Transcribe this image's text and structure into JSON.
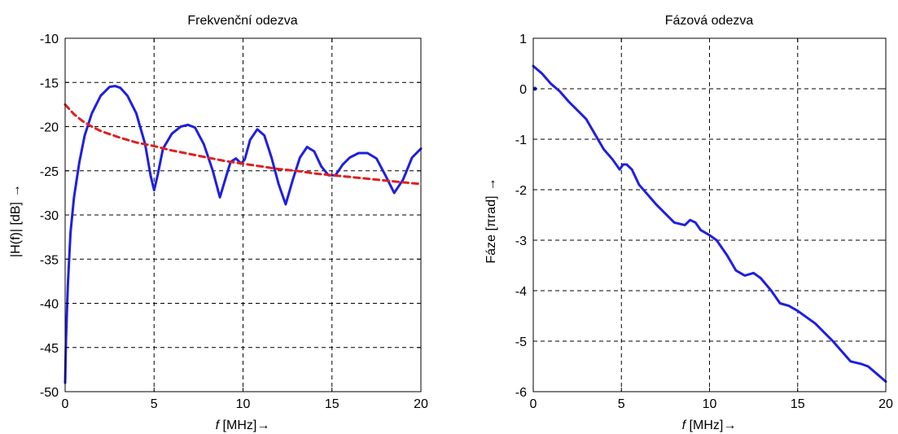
{
  "chart_data": [
    {
      "type": "line",
      "title": "Frekvenční odezva",
      "xlabel_italic": "f",
      "xlabel_rest": " [MHz]",
      "xlabel_arrow": "→",
      "ylabel": "|H(f)| [dB]",
      "ylabel_arrow": "→",
      "xlim": [
        0,
        20
      ],
      "ylim": [
        -50,
        -10
      ],
      "xticks": [
        "0",
        "5",
        "10",
        "15",
        "20"
      ],
      "yticks": [
        "-50",
        "-45",
        "-40",
        "-35",
        "-30",
        "-25",
        "-20",
        "-15",
        "-10"
      ],
      "grid": true,
      "series": [
        {
          "color": "#1f1fe0",
          "style": "solid",
          "points": [
            [
              0,
              -49
            ],
            [
              0.05,
              -44
            ],
            [
              0.15,
              -38
            ],
            [
              0.3,
              -32
            ],
            [
              0.5,
              -28
            ],
            [
              0.8,
              -24
            ],
            [
              1.1,
              -21
            ],
            [
              1.5,
              -18.5
            ],
            [
              2,
              -16.5
            ],
            [
              2.5,
              -15.5
            ],
            [
              2.8,
              -15.4
            ],
            [
              3.1,
              -15.6
            ],
            [
              3.5,
              -16.5
            ],
            [
              4,
              -18.5
            ],
            [
              4.5,
              -22
            ],
            [
              4.8,
              -25.5
            ],
            [
              5,
              -27.2
            ],
            [
              5.2,
              -25.5
            ],
            [
              5.5,
              -22.5
            ],
            [
              6,
              -20.8
            ],
            [
              6.5,
              -20
            ],
            [
              6.9,
              -19.8
            ],
            [
              7.3,
              -20.1
            ],
            [
              7.8,
              -22
            ],
            [
              8.3,
              -25
            ],
            [
              8.7,
              -28
            ],
            [
              9,
              -26
            ],
            [
              9.3,
              -24
            ],
            [
              9.6,
              -23.6
            ],
            [
              9.9,
              -24.2
            ],
            [
              10.1,
              -23.7
            ],
            [
              10.4,
              -21.5
            ],
            [
              10.8,
              -20.3
            ],
            [
              11.2,
              -21
            ],
            [
              11.6,
              -23.5
            ],
            [
              12,
              -26.5
            ],
            [
              12.4,
              -28.8
            ],
            [
              12.8,
              -26
            ],
            [
              13.2,
              -23.5
            ],
            [
              13.6,
              -22.3
            ],
            [
              14,
              -22.8
            ],
            [
              14.4,
              -24.5
            ],
            [
              14.8,
              -25.5
            ],
            [
              15.2,
              -25.5
            ],
            [
              15.6,
              -24.3
            ],
            [
              16,
              -23.5
            ],
            [
              16.5,
              -23
            ],
            [
              17,
              -23
            ],
            [
              17.5,
              -23.6
            ],
            [
              18,
              -25.5
            ],
            [
              18.5,
              -27.5
            ],
            [
              19,
              -26
            ],
            [
              19.5,
              -23.5
            ],
            [
              20,
              -22.5
            ]
          ]
        },
        {
          "color": "#e01f1f",
          "style": "dashed",
          "points": [
            [
              0,
              -17.5
            ],
            [
              0.5,
              -18.6
            ],
            [
              1,
              -19.4
            ],
            [
              1.5,
              -20
            ],
            [
              2,
              -20.5
            ],
            [
              3,
              -21.2
            ],
            [
              4,
              -21.8
            ],
            [
              5,
              -22.2
            ],
            [
              6,
              -22.7
            ],
            [
              7,
              -23.1
            ],
            [
              8,
              -23.5
            ],
            [
              9,
              -23.9
            ],
            [
              10,
              -24.2
            ],
            [
              11,
              -24.5
            ],
            [
              12,
              -24.8
            ],
            [
              13,
              -25
            ],
            [
              14,
              -25.3
            ],
            [
              15,
              -25.5
            ],
            [
              16,
              -25.7
            ],
            [
              17,
              -25.9
            ],
            [
              18,
              -26.1
            ],
            [
              19,
              -26.3
            ],
            [
              20,
              -26.5
            ]
          ]
        }
      ]
    },
    {
      "type": "line",
      "title": "Fázová odezva",
      "xlabel_italic": "f",
      "xlabel_rest": " [MHz]",
      "xlabel_arrow": "→",
      "ylabel_prefix": "Fáze [",
      "ylabel_pi": "π",
      "ylabel_suffix": "rad]",
      "ylabel_arrow": "→",
      "xlim": [
        0,
        20
      ],
      "ylim": [
        -6,
        1
      ],
      "xticks": [
        "0",
        "5",
        "10",
        "15",
        "20"
      ],
      "yticks": [
        "-6",
        "-5",
        "-4",
        "-3",
        "-2",
        "-1",
        "0",
        "1"
      ],
      "grid": true,
      "marker_point": [
        0,
        0
      ],
      "series": [
        {
          "color": "#1f1fe0",
          "style": "solid",
          "points": [
            [
              0,
              0.45
            ],
            [
              0.5,
              0.3
            ],
            [
              1,
              0.1
            ],
            [
              1.5,
              -0.05
            ],
            [
              2,
              -0.25
            ],
            [
              3,
              -0.6
            ],
            [
              4,
              -1.2
            ],
            [
              4.5,
              -1.4
            ],
            [
              4.9,
              -1.6
            ],
            [
              5.1,
              -1.5
            ],
            [
              5.3,
              -1.5
            ],
            [
              5.6,
              -1.6
            ],
            [
              6,
              -1.9
            ],
            [
              7,
              -2.3
            ],
            [
              8,
              -2.65
            ],
            [
              8.6,
              -2.7
            ],
            [
              8.9,
              -2.6
            ],
            [
              9.2,
              -2.65
            ],
            [
              9.5,
              -2.8
            ],
            [
              10,
              -2.9
            ],
            [
              10.4,
              -3.0
            ],
            [
              11,
              -3.3
            ],
            [
              11.5,
              -3.6
            ],
            [
              12,
              -3.7
            ],
            [
              12.5,
              -3.65
            ],
            [
              12.9,
              -3.75
            ],
            [
              13.5,
              -4.0
            ],
            [
              14,
              -4.25
            ],
            [
              14.5,
              -4.3
            ],
            [
              15,
              -4.4
            ],
            [
              16,
              -4.65
            ],
            [
              17,
              -5.0
            ],
            [
              18,
              -5.4
            ],
            [
              18.6,
              -5.45
            ],
            [
              19,
              -5.5
            ],
            [
              19.5,
              -5.65
            ],
            [
              20,
              -5.8
            ]
          ]
        }
      ]
    }
  ]
}
